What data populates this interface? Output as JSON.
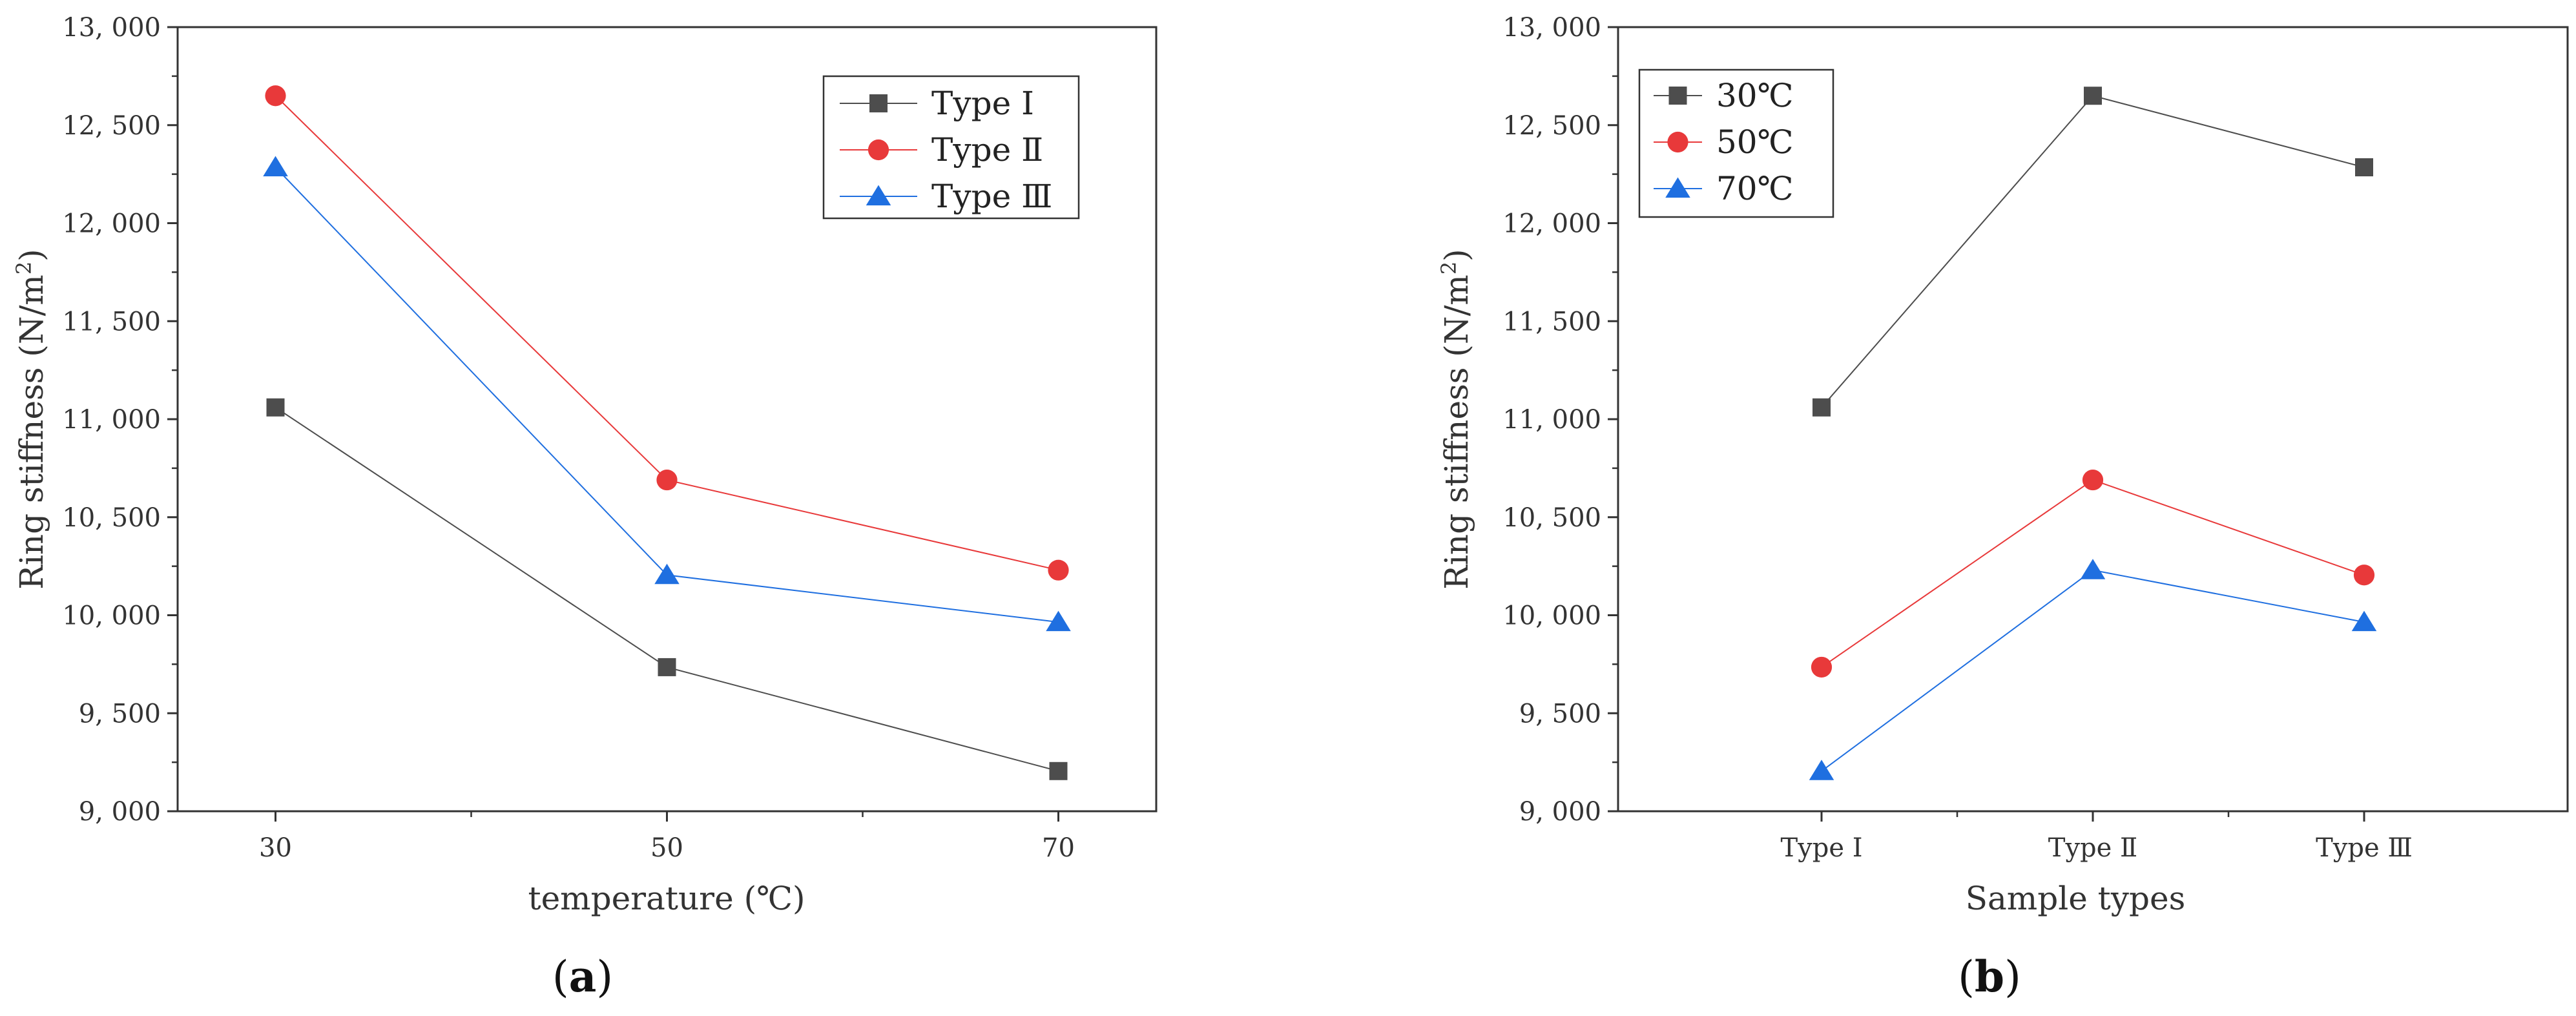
{
  "chart_data": [
    {
      "type": "line",
      "panel_label": {
        "open": "(",
        "letter": "a",
        "close": ")"
      },
      "xlabel": "temperature (℃)",
      "ylabel": "Ring stiffness (N/m²)",
      "x": [
        30,
        50,
        70
      ],
      "x_tick_labels": [
        "30",
        "50",
        "70"
      ],
      "xlim": [
        25,
        75
      ],
      "ylim": [
        9000,
        13000
      ],
      "y_ticks": [
        9000,
        9500,
        10000,
        10500,
        11000,
        11500,
        12000,
        12500,
        13000
      ],
      "y_tick_labels": [
        "9, 000",
        "9, 500",
        "10, 000",
        "10, 500",
        "11, 000",
        "11, 500",
        "12, 000",
        "12, 500",
        "13, 000"
      ],
      "legend_position": "top-right",
      "series": [
        {
          "name": "Type Ⅰ",
          "marker": "square",
          "color": "#4d4d4d",
          "values": [
            11060,
            9735,
            9205
          ]
        },
        {
          "name": "Type Ⅱ",
          "marker": "circle",
          "color": "#e8393a",
          "values": [
            12650,
            10690,
            10230
          ]
        },
        {
          "name": "Type Ⅲ",
          "marker": "triangle",
          "color": "#1f6fe0",
          "values": [
            12285,
            10205,
            9965
          ]
        }
      ]
    },
    {
      "type": "line",
      "panel_label": {
        "open": "(",
        "letter": "b",
        "close": ")"
      },
      "xlabel": "Sample types",
      "ylabel": "Ring stiffness (N/m²)",
      "categories": [
        "Type Ⅰ",
        "Type Ⅱ",
        "Type Ⅲ"
      ],
      "ylim": [
        9000,
        13000
      ],
      "y_ticks": [
        9000,
        9500,
        10000,
        10500,
        11000,
        11500,
        12000,
        12500,
        13000
      ],
      "y_tick_labels": [
        "9, 000",
        "9, 500",
        "10, 000",
        "10, 500",
        "11, 000",
        "11, 500",
        "12, 000",
        "12, 500",
        "13, 000"
      ],
      "legend_position": "top-left",
      "series": [
        {
          "name": "30℃",
          "marker": "square",
          "color": "#4d4d4d",
          "values": [
            11060,
            12650,
            12285
          ]
        },
        {
          "name": "50℃",
          "marker": "circle",
          "color": "#e8393a",
          "values": [
            9735,
            10690,
            10205
          ]
        },
        {
          "name": "70℃",
          "marker": "triangle",
          "color": "#1f6fe0",
          "values": [
            9205,
            10230,
            9965
          ]
        }
      ]
    }
  ]
}
